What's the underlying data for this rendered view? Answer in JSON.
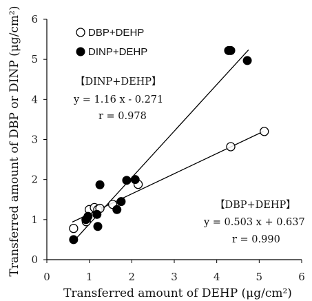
{
  "chart_data": {
    "type": "scatter",
    "xlabel": "Transferred amount of DEHP (μg/cm²)",
    "ylabel": "Transferred amount of DBP or DINP (μg/cm²)",
    "xlim": [
      0,
      6
    ],
    "ylim": [
      0,
      6
    ],
    "xticks": [
      "0",
      "1",
      "2",
      "3",
      "4",
      "5",
      "6"
    ],
    "yticks": [
      "0",
      "1",
      "2",
      "3",
      "4",
      "5",
      "6"
    ],
    "grid": false,
    "legend_placement": "top-left",
    "series": [
      {
        "name": "DBP+DEHP",
        "marker": "open-circle",
        "color": "#000000",
        "points": [
          [
            0.63,
            0.78
          ],
          [
            0.93,
            0.95
          ],
          [
            1.0,
            1.25
          ],
          [
            1.12,
            1.3
          ],
          [
            1.2,
            1.25
          ],
          [
            1.25,
            1.28
          ],
          [
            1.55,
            1.38
          ],
          [
            2.15,
            1.88
          ],
          [
            4.33,
            2.82
          ],
          [
            5.12,
            3.2
          ]
        ],
        "fit": {
          "slope": 0.503,
          "intercept": 0.637,
          "x_range": [
            0.6,
            5.1
          ]
        }
      },
      {
        "name": "DINP+DEHP",
        "marker": "filled-circle",
        "color": "#000000",
        "points": [
          [
            0.63,
            0.5
          ],
          [
            0.92,
            1.0
          ],
          [
            0.97,
            1.08
          ],
          [
            1.18,
            1.13
          ],
          [
            1.2,
            0.83
          ],
          [
            1.25,
            1.87
          ],
          [
            1.65,
            1.25
          ],
          [
            1.75,
            1.45
          ],
          [
            1.88,
            1.98
          ],
          [
            2.08,
            2.0
          ],
          [
            4.28,
            5.22
          ],
          [
            4.33,
            5.22
          ],
          [
            4.72,
            4.97
          ]
        ],
        "fit": {
          "slope": 1.16,
          "intercept": -0.271,
          "x_range": [
            0.63,
            4.75
          ]
        }
      }
    ],
    "annotations": [
      {
        "id": "dinp",
        "lines": [
          "【DINP+DEHP】",
          "y = 1.16 x - 0.271",
          "r = 0.978"
        ]
      },
      {
        "id": "dbp",
        "lines": [
          "【DBP+DEHP】",
          "y = 0.503 x + 0.637",
          "r = 0.990"
        ]
      }
    ]
  }
}
